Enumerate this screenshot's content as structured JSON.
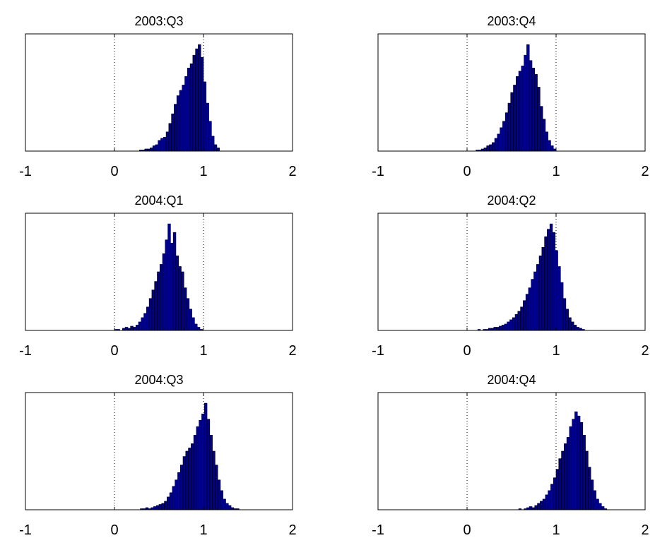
{
  "chart_data": [
    {
      "type": "histogram",
      "title": "2003:Q3",
      "xlim": [
        -1,
        2
      ],
      "xticks": [
        -1,
        0,
        1,
        2
      ],
      "ylim": [
        0,
        110
      ],
      "reference_lines": [
        0,
        1
      ],
      "color": "#00008f",
      "bins": [
        0.28,
        0.31,
        0.34,
        0.37,
        0.4,
        0.43,
        0.46,
        0.49,
        0.52,
        0.55,
        0.58,
        0.61,
        0.64,
        0.67,
        0.7,
        0.73,
        0.76,
        0.79,
        0.82,
        0.85,
        0.88,
        0.91,
        0.94,
        0.97,
        1.0,
        1.03,
        1.06,
        1.09,
        1.12,
        1.15,
        1.18
      ],
      "counts": [
        1,
        1,
        2,
        2,
        3,
        5,
        6,
        10,
        12,
        13,
        18,
        26,
        35,
        44,
        52,
        57,
        62,
        70,
        78,
        82,
        90,
        96,
        100,
        88,
        65,
        45,
        28,
        14,
        6,
        3
      ]
    },
    {
      "type": "histogram",
      "title": "2003:Q4",
      "xlim": [
        -1,
        2
      ],
      "xticks": [
        -1,
        0,
        1,
        2
      ],
      "ylim": [
        0,
        110
      ],
      "reference_lines": [
        0,
        1
      ],
      "color": "#00008f",
      "bins": [
        0.1,
        0.13,
        0.16,
        0.19,
        0.22,
        0.25,
        0.28,
        0.31,
        0.34,
        0.37,
        0.4,
        0.43,
        0.46,
        0.49,
        0.52,
        0.55,
        0.58,
        0.61,
        0.64,
        0.67,
        0.7,
        0.73,
        0.76,
        0.79,
        0.82,
        0.85,
        0.88,
        0.91,
        0.94,
        0.97,
        1.0
      ],
      "counts": [
        1,
        1,
        2,
        3,
        5,
        6,
        8,
        12,
        16,
        22,
        28,
        36,
        45,
        55,
        62,
        70,
        75,
        80,
        90,
        100,
        85,
        78,
        72,
        60,
        42,
        30,
        18,
        10,
        5,
        2
      ]
    },
    {
      "type": "histogram",
      "title": "2004:Q1",
      "xlim": [
        -1,
        2
      ],
      "xticks": [
        -1,
        0,
        1,
        2
      ],
      "ylim": [
        0,
        110
      ],
      "reference_lines": [
        0,
        1
      ],
      "color": "#00008f",
      "bins": [
        0.0,
        0.03,
        0.06,
        0.09,
        0.12,
        0.15,
        0.18,
        0.21,
        0.24,
        0.27,
        0.3,
        0.33,
        0.36,
        0.39,
        0.42,
        0.45,
        0.48,
        0.51,
        0.54,
        0.57,
        0.6,
        0.63,
        0.66,
        0.69,
        0.72,
        0.75,
        0.78,
        0.81,
        0.84,
        0.87,
        0.9,
        0.93,
        0.96,
        0.99
      ],
      "counts": [
        1,
        1,
        0,
        2,
        3,
        2,
        4,
        3,
        5,
        8,
        12,
        16,
        22,
        30,
        38,
        46,
        55,
        62,
        72,
        85,
        100,
        82,
        92,
        70,
        60,
        55,
        40,
        30,
        20,
        12,
        6,
        3,
        1
      ]
    },
    {
      "type": "histogram",
      "title": "2004:Q2",
      "xlim": [
        -1,
        2
      ],
      "xticks": [
        -1,
        0,
        1,
        2
      ],
      "ylim": [
        0,
        110
      ],
      "reference_lines": [
        0,
        1
      ],
      "color": "#00008f",
      "bins": [
        0.12,
        0.15,
        0.18,
        0.21,
        0.24,
        0.27,
        0.3,
        0.33,
        0.36,
        0.39,
        0.42,
        0.45,
        0.48,
        0.51,
        0.54,
        0.57,
        0.6,
        0.63,
        0.66,
        0.69,
        0.72,
        0.75,
        0.78,
        0.81,
        0.84,
        0.87,
        0.9,
        0.93,
        0.96,
        0.99,
        1.02,
        1.05,
        1.08,
        1.11,
        1.14,
        1.17,
        1.2,
        1.23,
        1.26,
        1.29,
        1.32
      ],
      "counts": [
        1,
        0,
        1,
        1,
        2,
        2,
        3,
        3,
        4,
        5,
        6,
        8,
        10,
        12,
        15,
        18,
        22,
        28,
        34,
        40,
        48,
        55,
        62,
        70,
        78,
        88,
        95,
        100,
        92,
        75,
        60,
        45,
        30,
        20,
        12,
        8,
        5,
        3,
        2,
        1
      ]
    },
    {
      "type": "histogram",
      "title": "2004:Q3",
      "xlim": [
        -1,
        2
      ],
      "xticks": [
        -1,
        0,
        1,
        2
      ],
      "ylim": [
        0,
        110
      ],
      "reference_lines": [
        0,
        1
      ],
      "color": "#00008f",
      "bins": [
        0.29,
        0.32,
        0.35,
        0.38,
        0.41,
        0.44,
        0.47,
        0.5,
        0.53,
        0.56,
        0.59,
        0.62,
        0.65,
        0.68,
        0.71,
        0.74,
        0.77,
        0.8,
        0.83,
        0.86,
        0.89,
        0.92,
        0.95,
        0.98,
        1.01,
        1.04,
        1.07,
        1.1,
        1.13,
        1.16,
        1.19,
        1.22,
        1.25,
        1.28,
        1.31,
        1.34,
        1.37,
        1.4
      ],
      "counts": [
        1,
        1,
        2,
        1,
        2,
        3,
        4,
        5,
        6,
        8,
        12,
        16,
        22,
        28,
        35,
        42,
        50,
        55,
        58,
        62,
        70,
        78,
        84,
        90,
        100,
        85,
        70,
        55,
        42,
        28,
        18,
        10,
        6,
        4,
        2,
        1,
        1
      ]
    },
    {
      "type": "histogram",
      "title": "2004:Q4",
      "xlim": [
        -1,
        2
      ],
      "xticks": [
        -1,
        0,
        1,
        2
      ],
      "ylim": [
        0,
        110
      ],
      "reference_lines": [
        0,
        1
      ],
      "color": "#00008f",
      "bins": [
        0.58,
        0.61,
        0.64,
        0.67,
        0.7,
        0.73,
        0.76,
        0.79,
        0.82,
        0.85,
        0.88,
        0.91,
        0.94,
        0.97,
        1.0,
        1.03,
        1.06,
        1.09,
        1.12,
        1.15,
        1.18,
        1.21,
        1.24,
        1.27,
        1.3,
        1.33,
        1.36,
        1.39,
        1.42,
        1.45,
        1.48,
        1.51,
        1.54,
        1.57
      ],
      "counts": [
        1,
        0,
        1,
        2,
        3,
        2,
        4,
        6,
        8,
        10,
        14,
        18,
        24,
        30,
        38,
        48,
        55,
        62,
        68,
        78,
        85,
        92,
        88,
        82,
        70,
        55,
        40,
        28,
        18,
        10,
        6,
        3,
        1
      ]
    }
  ]
}
